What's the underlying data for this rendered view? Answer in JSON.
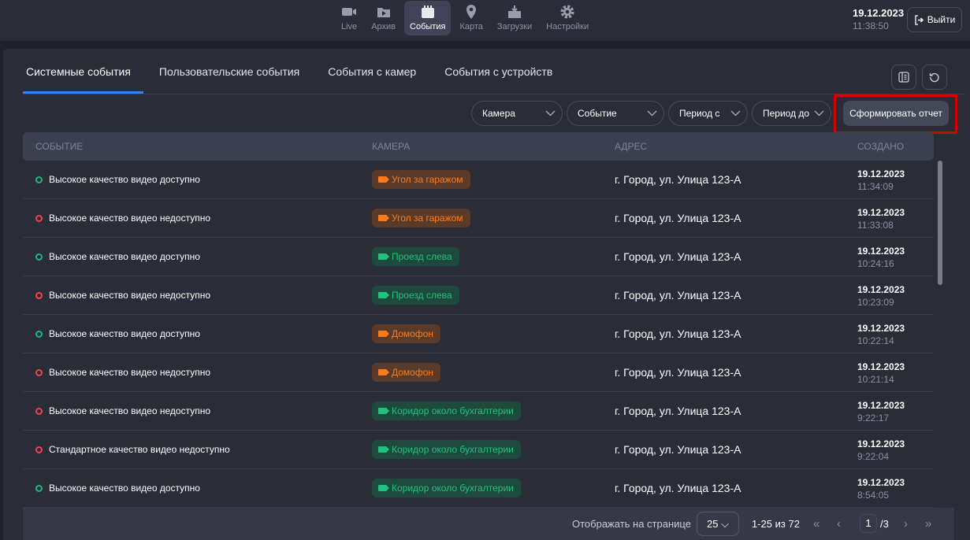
{
  "header": {
    "nav": [
      {
        "label": "Live",
        "icon": "video-camera-icon"
      },
      {
        "label": "Архив",
        "icon": "folder-play-icon"
      },
      {
        "label": "События",
        "icon": "calendar-icon",
        "active": true
      },
      {
        "label": "Карта",
        "icon": "map-pin-icon"
      },
      {
        "label": "Загрузки",
        "icon": "download-box-icon"
      },
      {
        "label": "Настройки",
        "icon": "gear-icon"
      }
    ],
    "date": "19.12.2023",
    "time": "11:38:50",
    "logout_label": "Выйти"
  },
  "tabs": [
    {
      "label": "Системные события",
      "active": true
    },
    {
      "label": "Пользовательские события"
    },
    {
      "label": "События с камер"
    },
    {
      "label": "События с устройств"
    }
  ],
  "filters": {
    "camera": "Камера",
    "event": "Событие",
    "period_from": "Период с",
    "period_to": "Период до",
    "report_button": "Сформировать отчет"
  },
  "table": {
    "columns": [
      "СОБЫТИЕ",
      "КАМЕРА",
      "АДРЕС",
      "СОЗДАНО"
    ],
    "rows": [
      {
        "status": "ok",
        "event": "Высокое качество видео доступно",
        "camera": "Угол за гаражом",
        "camera_color": "orange",
        "address": "г. Город, ул. Улица 123-А",
        "date": "19.12.2023",
        "time": "11:34:09"
      },
      {
        "status": "error",
        "event": "Высокое качество видео недоступно",
        "camera": "Угол за гаражом",
        "camera_color": "orange",
        "address": "г. Город, ул. Улица 123-А",
        "date": "19.12.2023",
        "time": "11:33:08"
      },
      {
        "status": "ok",
        "event": "Высокое качество видео доступно",
        "camera": "Проезд слева",
        "camera_color": "green",
        "address": "г. Город, ул. Улица 123-А",
        "date": "19.12.2023",
        "time": "10:24:16"
      },
      {
        "status": "error",
        "event": "Высокое качество видео недоступно",
        "camera": "Проезд слева",
        "camera_color": "green",
        "address": "г. Город, ул. Улица 123-А",
        "date": "19.12.2023",
        "time": "10:23:09"
      },
      {
        "status": "ok",
        "event": "Высокое качество видео доступно",
        "camera": "Домофон",
        "camera_color": "orange",
        "address": "г. Город, ул. Улица 123-А",
        "date": "19.12.2023",
        "time": "10:22:14"
      },
      {
        "status": "error",
        "event": "Высокое качество видео недоступно",
        "camera": "Домофон",
        "camera_color": "orange",
        "address": "г. Город, ул. Улица 123-А",
        "date": "19.12.2023",
        "time": "10:21:14"
      },
      {
        "status": "error",
        "event": "Высокое качество видео недоступно",
        "camera": "Коридор около бухгалтерии",
        "camera_color": "green",
        "address": "г. Город, ул. Улица 123-А",
        "date": "19.12.2023",
        "time": "9:22:17"
      },
      {
        "status": "error",
        "event": "Стандартное качество видео недоступно",
        "camera": "Коридор около бухгалтерии",
        "camera_color": "green",
        "address": "г. Город, ул. Улица 123-А",
        "date": "19.12.2023",
        "time": "9:22:04"
      },
      {
        "status": "ok",
        "event": "Высокое качество видео доступно",
        "camera": "Коридор около бухгалтерии",
        "camera_color": "green",
        "address": "г. Город, ул. Улица 123-А",
        "date": "19.12.2023",
        "time": "8:54:05"
      }
    ]
  },
  "footer": {
    "per_page_label": "Отображать на странице",
    "per_page": "25",
    "range": "1-25 из 72",
    "page": "1",
    "total_pages": "/3"
  },
  "colors": {
    "accent": "#3b82f6",
    "ok": "#1fb57e",
    "error": "#f0434f",
    "orange_text": "#ff7a1a",
    "orange_bg": "#5a3a28",
    "green_text": "#22c17f",
    "green_bg": "#1e4a3e",
    "highlight": "#d30000"
  }
}
